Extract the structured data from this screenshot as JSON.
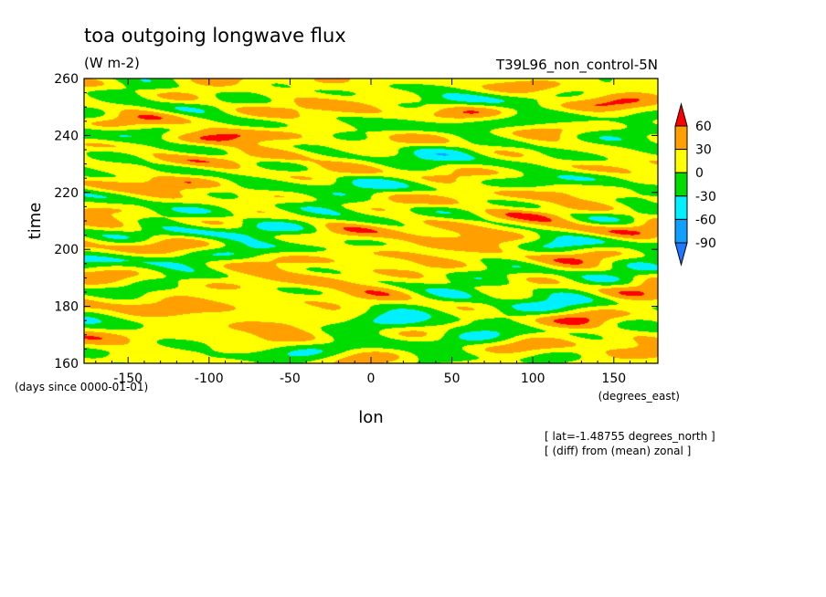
{
  "chart_data": {
    "type": "heatmap",
    "title": "toa outgoing longwave flux",
    "subtitle": "(W m-2)",
    "experiment": "T39L96_non_control-5N",
    "xlabel": "lon",
    "x_units": "(degrees_east)",
    "ylabel": "time",
    "y_units": "(days since 0000-01-01)",
    "xlim": [
      -177.2,
      177.2
    ],
    "ylim": [
      160,
      260
    ],
    "x_ticks": [
      -150,
      -100,
      -50,
      0,
      50,
      100,
      150
    ],
    "y_ticks": [
      160,
      180,
      200,
      220,
      240,
      260
    ],
    "x_tick_labels": [
      "-150",
      "-100",
      "-50",
      "0",
      "50",
      "100",
      "150"
    ],
    "y_tick_labels": [
      "160",
      "180",
      "200",
      "220",
      "240",
      "260"
    ],
    "colorbar": {
      "levels": [
        -90,
        -60,
        -30,
        0,
        30,
        60
      ],
      "labels": [
        "-90",
        "-60",
        "-30",
        "0",
        "30",
        "60"
      ],
      "colors": [
        "#1e78ff",
        "#0fa0ff",
        "#00f0ff",
        "#00dc00",
        "#ffff00",
        "#ffa000",
        "#ff0000"
      ]
    },
    "footnotes": [
      "[ lat=-1.48755 degrees_north ]",
      "[ (diff) from (mean) zonal ]"
    ]
  }
}
